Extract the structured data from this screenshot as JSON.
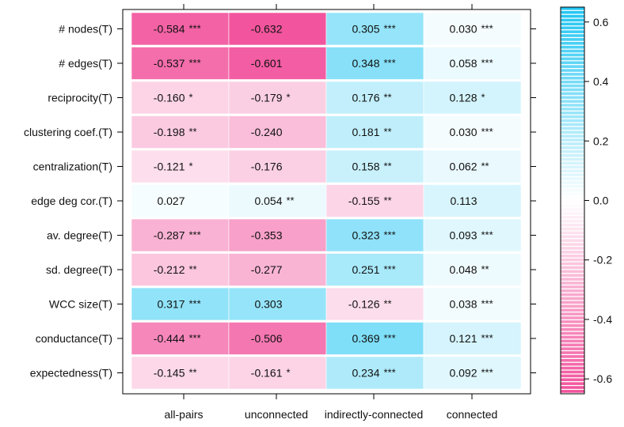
{
  "chart_data": {
    "type": "heatmap",
    "title": "",
    "xlabel": "",
    "ylabel": "",
    "columns": [
      "all-pairs",
      "unconnected",
      "indirectly-connected",
      "connected"
    ],
    "rows": [
      "# nodes(T)",
      "# edges(T)",
      "reciprocity(T)",
      "clustering coef.(T)",
      "centralization(T)",
      "edge deg cor.(T)",
      "av. degree(T)",
      "sd. degree(T)",
      "WCC size(T)",
      "conductance(T)",
      "expectedness(T)"
    ],
    "values": [
      [
        -0.584,
        -0.632,
        0.305,
        0.03
      ],
      [
        -0.537,
        -0.601,
        0.348,
        0.058
      ],
      [
        -0.16,
        -0.179,
        0.176,
        0.128
      ],
      [
        -0.198,
        -0.24,
        0.181,
        0.03
      ],
      [
        -0.121,
        -0.176,
        0.158,
        0.062
      ],
      [
        0.027,
        0.054,
        -0.155,
        0.113
      ],
      [
        -0.287,
        -0.353,
        0.323,
        0.093
      ],
      [
        -0.212,
        -0.277,
        0.251,
        0.048
      ],
      [
        0.317,
        0.303,
        -0.126,
        0.038
      ],
      [
        -0.444,
        -0.506,
        0.369,
        0.121
      ],
      [
        -0.145,
        -0.161,
        0.234,
        0.092
      ]
    ],
    "labels": [
      [
        "-0.584",
        "-0.632",
        "0.305",
        "0.030"
      ],
      [
        "-0.537",
        "-0.601",
        "0.348",
        "0.058"
      ],
      [
        "-0.160",
        "-0.179",
        "0.176",
        "0.128"
      ],
      [
        "-0.198",
        "-0.240",
        "0.181",
        "0.030"
      ],
      [
        "-0.121",
        "-0.176",
        "0.158",
        "0.062"
      ],
      [
        "0.027",
        "0.054",
        "-0.155",
        "0.113"
      ],
      [
        "-0.287",
        "-0.353",
        "0.323",
        "0.093"
      ],
      [
        "-0.212",
        "-0.277",
        "0.251",
        "0.048"
      ],
      [
        "0.317",
        "0.303",
        "-0.126",
        "0.038"
      ],
      [
        "-0.444",
        "-0.506",
        "0.369",
        "0.121"
      ],
      [
        "-0.145",
        "-0.161",
        "0.234",
        "0.092"
      ]
    ],
    "significance": [
      [
        "***",
        "",
        "***",
        "***"
      ],
      [
        "***",
        "",
        "***",
        "***"
      ],
      [
        "*",
        "*",
        "**",
        "*"
      ],
      [
        "**",
        "",
        "**",
        "***"
      ],
      [
        "*",
        "",
        "**",
        "**"
      ],
      [
        "",
        "**",
        "**",
        ""
      ],
      [
        "***",
        "",
        "***",
        "***"
      ],
      [
        "**",
        "",
        "***",
        "**"
      ],
      [
        "***",
        "",
        "**",
        "***"
      ],
      [
        "***",
        "",
        "***",
        "***"
      ],
      [
        "**",
        "*",
        "***",
        "***"
      ]
    ],
    "colorbar": {
      "range": [
        -0.65,
        0.65
      ],
      "ticks": [
        0.6,
        0.4,
        0.2,
        0.0,
        -0.2,
        -0.4,
        -0.6
      ],
      "tick_labels": [
        "0.6",
        "0.4",
        "0.2",
        "0.0",
        "-0.2",
        "-0.4",
        "-0.6"
      ],
      "positive_color": "#1ec5f2",
      "negative_color": "#f2509b",
      "zero_color": "#ffffff"
    }
  }
}
